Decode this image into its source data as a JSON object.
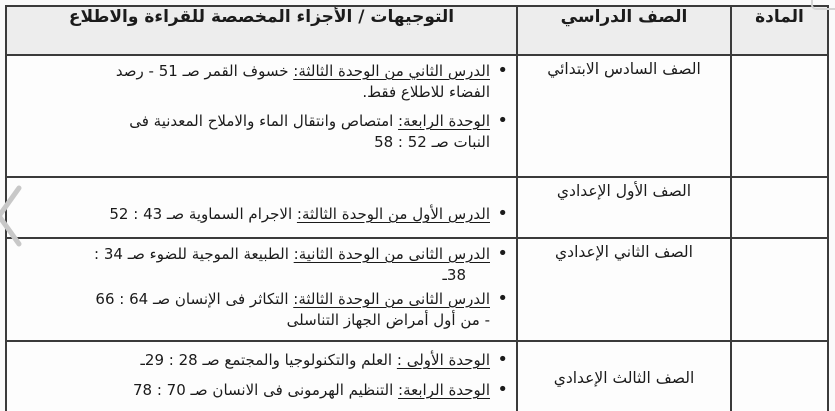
{
  "header": {
    "col_subject": "المادة",
    "col_grade": "الصف الدراسي",
    "col_directives": "التوجيهات / الأجزاء المخصصة للقراءة والاطلاع"
  },
  "rows": [
    {
      "grade": "الصف السادس الابتدائي",
      "subject": "",
      "items": [
        {
          "lead": "الدرس الثاني من الوحدة الثالثة:",
          "after": " خسوف القمر صـ 51 - رصد",
          "line2": "الفضاء للاطلاع فقط."
        },
        {
          "lead": "الوحدة الرابعة:",
          "after": " امتصاص وانتقال الماء والاملاح المعدنية فى",
          "line2": "النبات صـ 52 : 58"
        }
      ]
    },
    {
      "grade": "الصف الأول الإعدادي",
      "subject": "",
      "items": [
        {
          "lead": "الدرس الأول من الوحدة الثالثة:",
          "after": " الاجرام السماوية صـ 43 :  52"
        }
      ]
    },
    {
      "grade": "الصف الثاني الإعدادي",
      "subject": "",
      "items": [
        {
          "lead": "الدرس الثانى من الوحدة الثانية:",
          "after": " الطبيعة الموجية للضوء صـ 34 :",
          "line2": "38ـ",
          "line2_indent": true
        },
        {
          "lead": "الدرس الثانى من الوحدة الثالثة:",
          "after": " التكاثر فى الإنسان صـ 64 : 66",
          "line2": "- من أول أمراض الجهاز التناسلى"
        }
      ]
    },
    {
      "grade": "الصف الثالث الإعدادي",
      "subject": "",
      "items": [
        {
          "lead": "الوحدة الأولى :",
          "after": " العلم والتكنولوجيا والمجتمع صـ 28 : 29ـ"
        },
        {
          "lead": "الوحدة الرابعة:",
          "after": " التنظيم الهرمونى فى الانسان صـ 70 : 78"
        }
      ]
    }
  ],
  "colors": {
    "border": "#3b3b3b",
    "header_bg": "#ededed",
    "text": "#1b1b1b",
    "chevron": "#c8c8c8"
  }
}
